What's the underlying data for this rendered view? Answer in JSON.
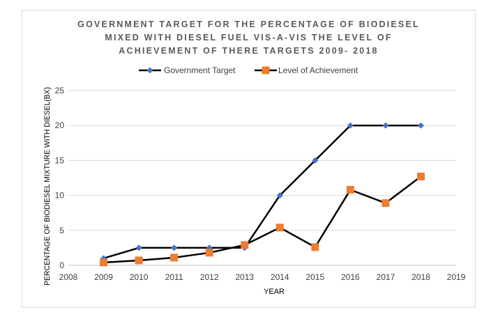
{
  "chart_data": {
    "type": "line",
    "title_lines": [
      "GOVERNMENT TARGET FOR THE PERCENTAGE OF BIODIESEL",
      "MIXED WITH DIESEL FUEL VIS-A-VIS THE LEVEL OF",
      "ACHIEVEMENT OF THERE TARGETS 2009- 2018"
    ],
    "xlabel": "YEAR",
    "ylabel": "PERCENTAGE OF BIODIESEL MIXTURE WITH DIESEL(BX)",
    "xlim": [
      2008,
      2019
    ],
    "ylim": [
      0,
      25
    ],
    "x_ticks": [
      "2008",
      "2009",
      "2010",
      "2011",
      "2012",
      "2013",
      "2014",
      "2015",
      "2016",
      "2017",
      "2018",
      "2019"
    ],
    "y_ticks": [
      "0",
      "5",
      "10",
      "15",
      "20",
      "25"
    ],
    "grid": "horizontal",
    "legend_position": "top",
    "x": [
      2009,
      2010,
      2011,
      2012,
      2013,
      2014,
      2015,
      2016,
      2017,
      2018
    ],
    "series": [
      {
        "name": "Government Target",
        "color": "#4472c4",
        "marker": "diamond",
        "values": [
          1,
          2.5,
          2.5,
          2.5,
          2.5,
          10,
          15,
          20,
          20,
          20
        ]
      },
      {
        "name": "Level of Achievement",
        "color": "#ed7d31",
        "marker": "square",
        "values": [
          0.4,
          0.7,
          1.1,
          1.8,
          2.9,
          5.4,
          2.6,
          10.8,
          8.9,
          12.7
        ]
      }
    ]
  }
}
